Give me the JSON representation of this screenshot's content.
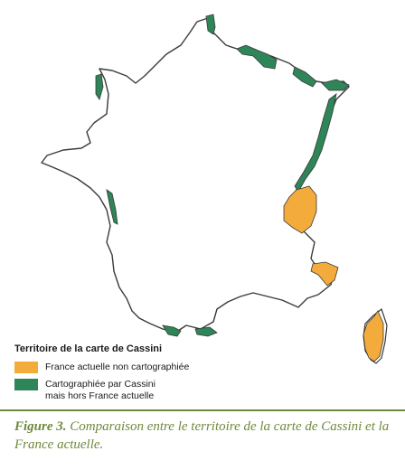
{
  "colors": {
    "outline": "#3a3a3a",
    "uncharted": "#f3ac3c",
    "outside": "#2e8558",
    "caption": "#6e8a3c"
  },
  "legend": {
    "title": "Territoire de la carte de Cassini",
    "items": [
      {
        "label": "France actuelle non cartographiée",
        "color": "#f3ac3c"
      },
      {
        "label": "Cartographiée par Cassini\nmais hors France actuelle",
        "color": "#2e8558"
      }
    ]
  },
  "caption": {
    "figure": "Figure 3.",
    "text": " Comparaison entre le territoire de la carte de Cassini et la France actuelle."
  }
}
